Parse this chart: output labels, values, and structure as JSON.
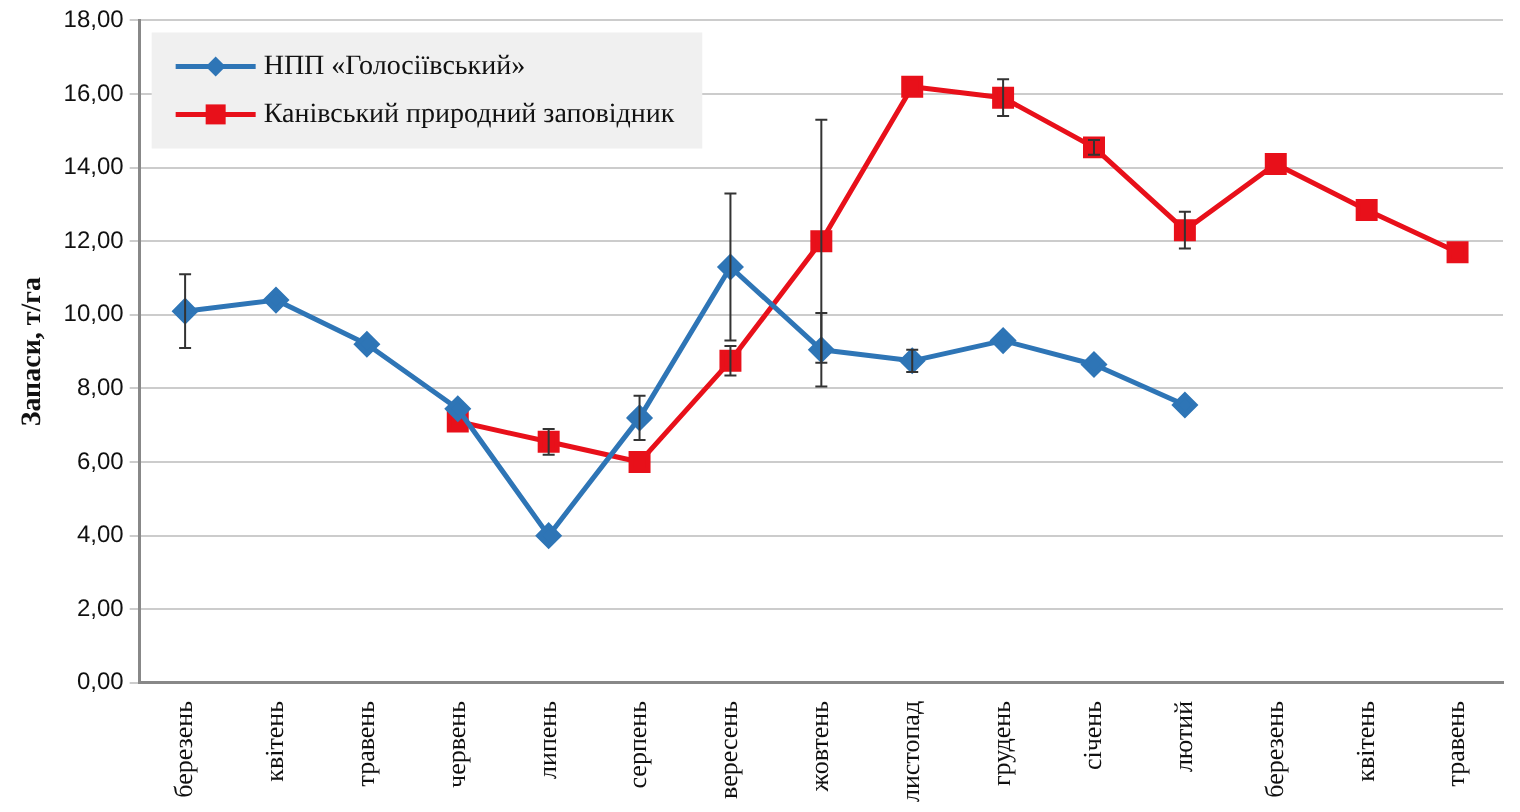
{
  "chart_data": {
    "type": "line",
    "ylabel": "Запаси, т/га",
    "categories": [
      "березень",
      "квітень",
      "травень",
      "червень",
      "липень",
      "серпень",
      "вересень",
      "жовтень",
      "листопад",
      "грудень",
      "січень",
      "лютий",
      "березень",
      "квітень",
      "травень"
    ],
    "series": [
      {
        "name": "НПП «Голосіївський»",
        "color": "#2e75b6",
        "marker": "diamond",
        "values": [
          10.1,
          10.4,
          9.2,
          7.45,
          4.0,
          7.2,
          11.3,
          9.05,
          8.75,
          9.3,
          8.65,
          7.55,
          null,
          null,
          null
        ],
        "errors": [
          1.0,
          null,
          null,
          null,
          null,
          0.6,
          2.0,
          1.0,
          0.3,
          null,
          null,
          null,
          null,
          null,
          null
        ]
      },
      {
        "name": "Канівський природний заповідник",
        "color": "#e8101a",
        "marker": "square",
        "values": [
          null,
          null,
          null,
          7.1,
          6.55,
          6.0,
          8.75,
          12.0,
          16.2,
          15.9,
          14.55,
          12.3,
          14.1,
          12.85,
          11.7
        ],
        "errors": [
          null,
          null,
          null,
          null,
          0.35,
          null,
          0.4,
          3.3,
          null,
          0.5,
          0.2,
          0.5,
          null,
          null,
          null
        ]
      }
    ],
    "ylim": [
      0,
      18
    ],
    "yticks": [
      {
        "value": 0,
        "label": "0,00"
      },
      {
        "value": 2,
        "label": "2,00"
      },
      {
        "value": 4,
        "label": "4,00"
      },
      {
        "value": 6,
        "label": "6,00"
      },
      {
        "value": 8,
        "label": "8,00"
      },
      {
        "value": 10,
        "label": "10,00"
      },
      {
        "value": 12,
        "label": "12,00"
      },
      {
        "value": 14,
        "label": "14,00"
      },
      {
        "value": 16,
        "label": "16,00"
      },
      {
        "value": 18,
        "label": "18,00"
      }
    ],
    "grid": "y",
    "legend": "top left",
    "line_style": "solid"
  }
}
